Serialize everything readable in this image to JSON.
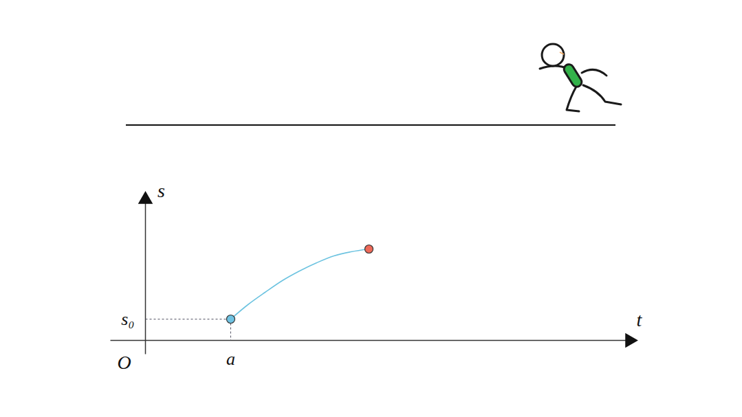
{
  "chart_data": {
    "type": "line",
    "x_label": "t",
    "y_label": "s",
    "annotations": [
      "O"
    ],
    "x": [
      12.4,
      14.9,
      17.4,
      19.9,
      22.4,
      24.9,
      27.4,
      29.9,
      32.5
    ],
    "values": [
      3.1,
      5.2,
      7.0,
      8.7,
      10.1,
      11.3,
      12.3,
      12.9,
      13.3
    ],
    "color": "#6cc3e0",
    "marker": "circle",
    "xlim": [
      -5.1,
      70.4
    ],
    "ylim": [
      -2,
      20.5
    ],
    "xticks": [
      {
        "value": 12.4,
        "label": "a"
      }
    ],
    "yticks": [
      {
        "value": 3.1,
        "label": "s₀"
      }
    ],
    "grid": false
  }
}
